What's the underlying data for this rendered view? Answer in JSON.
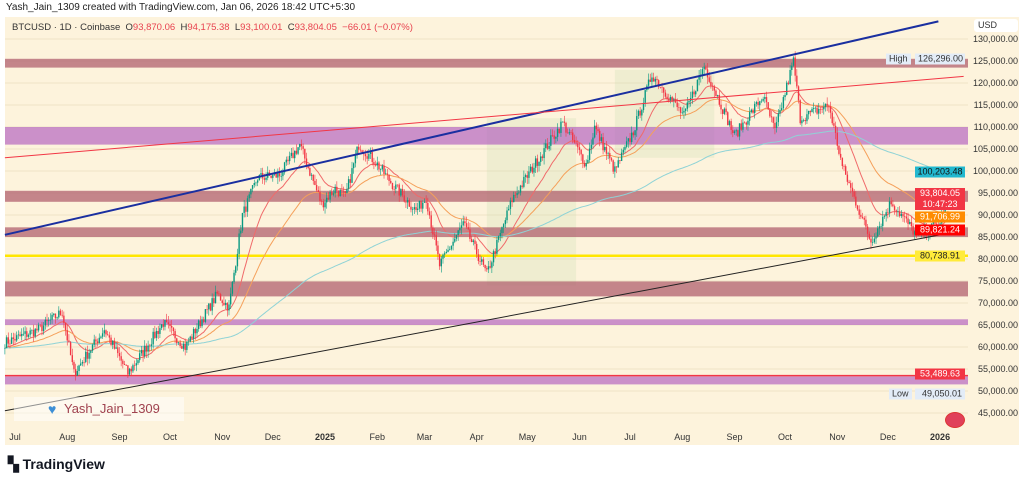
{
  "credit": "Yash_Jain_1309 created with TradingView.com, Jan 06, 2026 18:42 UTC+5:30",
  "legend": {
    "symbol": "BTCUSD · 1D · Coinbase",
    "o_label": "O",
    "open": "93,870.06",
    "h_label": "H",
    "high": "94,175.38",
    "l_label": "L",
    "low": "93,100.01",
    "c_label": "C",
    "close": "93,804.05",
    "change": "−66.01 (−0.07%)"
  },
  "currency": "USD",
  "watermark": "Yash_Jain_1309",
  "brand": "TradingView",
  "colors": {
    "up": "#089981",
    "down": "#f23645",
    "background": "#fdf3dc",
    "trend_blue": "#1a2fa0",
    "trend_red": "#f23645",
    "support_yellow": "#ffeb3b",
    "zone_pink": "#b0606f",
    "zone_purple": "#b565c0"
  },
  "badges": {
    "high": {
      "label": "High",
      "value": "126,296.00"
    },
    "low": {
      "label": "Low",
      "value": "49,050.01"
    },
    "ma200": "100,203.48",
    "last": "93,804.05",
    "countdown": "10:47:23",
    "ma_orange": "91,706.99",
    "ma_red": "89,821.24",
    "yellow_line": "80,738.91",
    "zone_low": "53,489.63"
  },
  "chart_data": {
    "type": "candlestick",
    "symbol": "BTCUSD",
    "interval": "1D",
    "ylim": [
      43000,
      132000
    ],
    "y_ticks": [
      "130,000.00",
      "125,000.00",
      "120,000.00",
      "115,000.00",
      "110,000.00",
      "105,000.00",
      "100,000.00",
      "95,000.00",
      "90,000.00",
      "85,000.00",
      "80,000.00",
      "75,000.00",
      "70,000.00",
      "65,000.00",
      "60,000.00",
      "55,000.00",
      "50,000.00",
      "45,000.00"
    ],
    "x_ticks": [
      {
        "label": "Jul",
        "date": "2024-07-01"
      },
      {
        "label": "Aug",
        "date": "2024-08-01"
      },
      {
        "label": "Sep",
        "date": "2024-09-01"
      },
      {
        "label": "Oct",
        "date": "2024-10-01"
      },
      {
        "label": "Nov",
        "date": "2024-11-01"
      },
      {
        "label": "Dec",
        "date": "2024-12-01"
      },
      {
        "label": "2025",
        "date": "2025-01-01"
      },
      {
        "label": "Feb",
        "date": "2025-02-01"
      },
      {
        "label": "Mar",
        "date": "2025-03-01"
      },
      {
        "label": "Apr",
        "date": "2025-04-01"
      },
      {
        "label": "May",
        "date": "2025-05-01"
      },
      {
        "label": "Jun",
        "date": "2025-06-01"
      },
      {
        "label": "Jul",
        "date": "2025-07-01"
      },
      {
        "label": "Aug",
        "date": "2025-08-01"
      },
      {
        "label": "Sep",
        "date": "2025-09-01"
      },
      {
        "label": "Oct",
        "date": "2025-10-01"
      },
      {
        "label": "Nov",
        "date": "2025-11-01"
      },
      {
        "label": "Dec",
        "date": "2025-12-01"
      },
      {
        "label": "2026",
        "date": "2026-01-01"
      }
    ],
    "close_path": [
      [
        "2024-06-25",
        61000
      ],
      [
        "2024-07-15",
        64000
      ],
      [
        "2024-07-29",
        68000
      ],
      [
        "2024-08-05",
        54000
      ],
      [
        "2024-08-23",
        64000
      ],
      [
        "2024-09-06",
        54000
      ],
      [
        "2024-09-27",
        65500
      ],
      [
        "2024-10-10",
        60000
      ],
      [
        "2024-10-29",
        72000
      ],
      [
        "2024-11-05",
        69000
      ],
      [
        "2024-11-13",
        90000
      ],
      [
        "2024-11-22",
        98500
      ],
      [
        "2024-12-05",
        99000
      ],
      [
        "2024-12-17",
        106000
      ],
      [
        "2024-12-30",
        92500
      ],
      [
        "2025-01-07",
        96000
      ],
      [
        "2025-01-13",
        94000
      ],
      [
        "2025-01-21",
        106000
      ],
      [
        "2025-01-31",
        102000
      ],
      [
        "2025-02-10",
        97000
      ],
      [
        "2025-02-24",
        91000
      ],
      [
        "2025-03-02",
        94000
      ],
      [
        "2025-03-10",
        78500
      ],
      [
        "2025-03-24",
        88000
      ],
      [
        "2025-04-07",
        76500
      ],
      [
        "2025-04-22",
        93500
      ],
      [
        "2025-05-08",
        103000
      ],
      [
        "2025-05-22",
        111000
      ],
      [
        "2025-06-05",
        101500
      ],
      [
        "2025-06-10",
        110000
      ],
      [
        "2025-06-22",
        100000
      ],
      [
        "2025-07-03",
        109000
      ],
      [
        "2025-07-14",
        122000
      ],
      [
        "2025-08-02",
        112500
      ],
      [
        "2025-08-14",
        124000
      ],
      [
        "2025-09-01",
        108000
      ],
      [
        "2025-09-18",
        117000
      ],
      [
        "2025-09-25",
        109000
      ],
      [
        "2025-10-06",
        125000
      ],
      [
        "2025-10-10",
        112000
      ],
      [
        "2025-10-27",
        115000
      ],
      [
        "2025-11-04",
        101000
      ],
      [
        "2025-11-21",
        84000
      ],
      [
        "2025-12-03",
        93000
      ],
      [
        "2025-12-18",
        85500
      ],
      [
        "2026-01-01",
        88000
      ],
      [
        "2026-01-06",
        93804
      ]
    ],
    "zones": [
      {
        "from": 123500,
        "to": 125500,
        "color": "pink"
      },
      {
        "from": 106000,
        "to": 110000,
        "color": "purple"
      },
      {
        "from": 93000,
        "to": 95500,
        "color": "pink"
      },
      {
        "from": 85000,
        "to": 87200,
        "color": "pink"
      },
      {
        "from": 71500,
        "to": 74900,
        "color": "pink"
      },
      {
        "from": 65000,
        "to": 66300,
        "color": "purple"
      },
      {
        "from": 51500,
        "to": 53300,
        "color": "purple"
      }
    ],
    "horizontal_lines": [
      {
        "price": 80738.91,
        "color": "yellow"
      },
      {
        "price": 53489.63,
        "color": "red"
      }
    ],
    "trendlines": [
      {
        "color": "blue",
        "from": [
          "2024-06-25",
          85500
        ],
        "to": [
          "2025-12-31",
          134000
        ]
      },
      {
        "color": "red",
        "from": [
          "2024-06-25",
          103000
        ],
        "to": [
          "2026-01-15",
          121500
        ]
      },
      {
        "color": "black",
        "from": [
          "2024-06-25",
          45500
        ],
        "to": [
          "2026-01-15",
          86500
        ]
      }
    ]
  }
}
